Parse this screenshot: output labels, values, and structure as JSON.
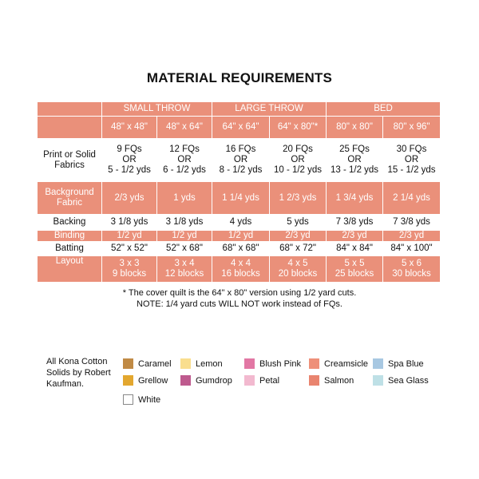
{
  "title": "MATERIAL REQUIREMENTS",
  "table": {
    "groups": [
      "SMALL THROW",
      "LARGE THROW",
      "BED"
    ],
    "sizes": [
      "48\" x 48\"",
      "48\" x 64\"",
      "64\" x 64\"",
      "64\" x 80\"*",
      "80\" x 80\"",
      "80\" x 96\""
    ],
    "rows": {
      "print_label_1": "Print or Solid",
      "print_label_2": "Fabrics",
      "print": [
        {
          "a": "9 FQs",
          "b": "OR",
          "c": "5 - 1/2 yds"
        },
        {
          "a": "12 FQs",
          "b": "OR",
          "c": "6 - 1/2 yds"
        },
        {
          "a": "16 FQs",
          "b": "OR",
          "c": "8 - 1/2 yds"
        },
        {
          "a": "20 FQs",
          "b": "OR",
          "c": "10 - 1/2 yds"
        },
        {
          "a": "25 FQs",
          "b": "OR",
          "c": "13 - 1/2 yds"
        },
        {
          "a": "30 FQs",
          "b": "OR",
          "c": "15 - 1/2 yds"
        }
      ],
      "background_label_1": "Background",
      "background_label_2": "Fabric",
      "background": [
        "2/3 yds",
        "1 yds",
        "1 1/4 yds",
        "1 2/3 yds",
        "1 3/4 yds",
        "2 1/4 yds"
      ],
      "backing_label": "Backing",
      "backing": [
        "3 1/8 yds",
        "3 1/8 yds",
        "4 yds",
        "5 yds",
        "7 3/8 yds",
        "7 3/8 yds"
      ],
      "binding_label": "Binding",
      "binding": [
        "1/2 yd",
        "1/2 yd",
        "1/2 yd",
        "2/3 yd",
        "2/3 yd",
        "2/3 yd"
      ],
      "batting_label": "Batting",
      "batting": [
        "52\" x 52\"",
        "52\" x 68\"",
        "68\" x 68\"",
        "68\" x 72\"",
        "84\" x 84\"",
        "84\" x 100\""
      ],
      "layout_label": "Layout",
      "layout": [
        {
          "grid": "3 x 3",
          "blocks": "9 blocks"
        },
        {
          "grid": "3 x 4",
          "blocks": "12 blocks"
        },
        {
          "grid": "4 x 4",
          "blocks": "16 blocks"
        },
        {
          "grid": "4 x 5",
          "blocks": "20 blocks"
        },
        {
          "grid": "5 x 5",
          "blocks": "25 blocks"
        },
        {
          "grid": "5 x 6",
          "blocks": "30 blocks"
        }
      ]
    }
  },
  "notes": {
    "line1": "* The cover quilt is the 64\" x 80\" version using 1/2 yard cuts.",
    "line2": "NOTE: 1/4 yard cuts WILL NOT work instead of FQs."
  },
  "legend": {
    "intro_1": "All Kona Cotton",
    "intro_2": "Solids by Robert",
    "intro_3": "Kaufman.",
    "swatches": [
      {
        "name": "Caramel",
        "color": "#C08A45"
      },
      {
        "name": "Grellow",
        "color": "#E3A72F"
      },
      {
        "name": "White",
        "color": "#FFFFFF"
      },
      {
        "name": "Lemon",
        "color": "#F9DE8E"
      },
      {
        "name": "Gumdrop",
        "color": "#BE5A8E"
      },
      {
        "name": "Blush Pink",
        "color": "#E277A4"
      },
      {
        "name": "Petal",
        "color": "#F2B9CF"
      },
      {
        "name": "Creamsicle",
        "color": "#EE9079"
      },
      {
        "name": "Salmon",
        "color": "#E9846F"
      },
      {
        "name": "Spa Blue",
        "color": "#A8C8E2"
      },
      {
        "name": "Sea Glass",
        "color": "#BEE0E6"
      }
    ]
  },
  "colors": {
    "header_fill": "#EA907A",
    "text_dark": "#111111"
  }
}
